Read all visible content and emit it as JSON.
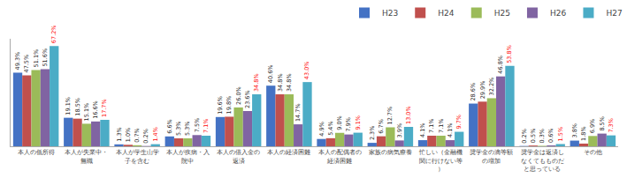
{
  "chart_data": {
    "type": "bar",
    "categories": [
      "本人の低所得",
      "本人が失業中・無職",
      "本人が学生山学子を含む",
      "本人が疾病・入院中",
      "本人の借入金の返済",
      "本人の経済困難",
      "本人の配偶者の経済困難",
      "家族の病気療養",
      "忙しい（金融機関に行けない等）",
      "奨学金の滴等額の増加",
      "奨学金は返済しなくてもものだと思っている",
      "その他"
    ],
    "series": [
      {
        "name": "H23",
        "color": "#4472c4",
        "values": [
          49.3,
          19.1,
          1.3,
          6.6,
          19.6,
          40.6,
          4.9,
          2.3,
          4.1,
          28.6,
          0.2,
          3.8
        ],
        "value_labels": [
          "49.3%",
          "19.1%",
          "1.3%",
          "6.6%",
          "19.6%",
          "40.6%",
          "4.9%",
          "2.3%",
          "4.1%",
          "28.6%",
          "0.2%",
          "3.8%"
        ]
      },
      {
        "name": "H24",
        "color": "#c0504d",
        "values": [
          47.5,
          18.5,
          1.0,
          5.3,
          19.8,
          34.8,
          5.4,
          6.7,
          7.1,
          29.9,
          0.5,
          1.8
        ],
        "value_labels": [
          "47.5%",
          "18.5%",
          "1.0%",
          "5.3%",
          "19.8%",
          "34.8%",
          "5.4%",
          "6.7%",
          "7.1%",
          "29.9%",
          "0.5%",
          "1.8%"
        ]
      },
      {
        "name": "H25",
        "color": "#9bbb59",
        "values": [
          51.1,
          15.1,
          0.7,
          5.3,
          26.0,
          34.8,
          9.0,
          12.7,
          7.1,
          32.2,
          0.3,
          6.9
        ],
        "value_labels": [
          "51.1%",
          "15.1%",
          "0.7%",
          "5.3%",
          "26.0%",
          "34.8%",
          "9.0%",
          "12.7%",
          "7.1%",
          "32.2%",
          "0.3%",
          "6.9%"
        ]
      },
      {
        "name": "H26",
        "color": "#8064a2",
        "values": [
          51.6,
          16.6,
          0.2,
          7.5,
          23.6,
          14.7,
          7.9,
          3.9,
          4.1,
          46.8,
          0.6,
          8.5
        ],
        "value_labels": [
          "51.6%",
          "16.6%",
          "0.2%",
          "7.5%",
          "23.6%",
          "14.7%",
          "7.9%",
          "3.9%",
          "4.1%",
          "46.8%",
          "0.6%",
          "8.5%"
        ]
      },
      {
        "name": "H27",
        "color": "#4bacc6",
        "values": [
          67.2,
          17.7,
          1.4,
          7.1,
          34.8,
          43.0,
          9.1,
          13.0,
          9.7,
          53.8,
          1.5,
          7.3
        ],
        "value_labels": [
          "67.2%",
          "17.7%",
          "1.4%",
          "7.1%",
          "34.8%",
          "43.0%",
          "9.1%",
          "13.0%",
          "9.7%",
          "53.8%",
          "1.5%",
          "7.3%"
        ]
      }
    ],
    "ylim": [
      0,
      72
    ],
    "grid": false,
    "legend": "upper right",
    "data_labels": true,
    "tick_labels": "x"
  }
}
